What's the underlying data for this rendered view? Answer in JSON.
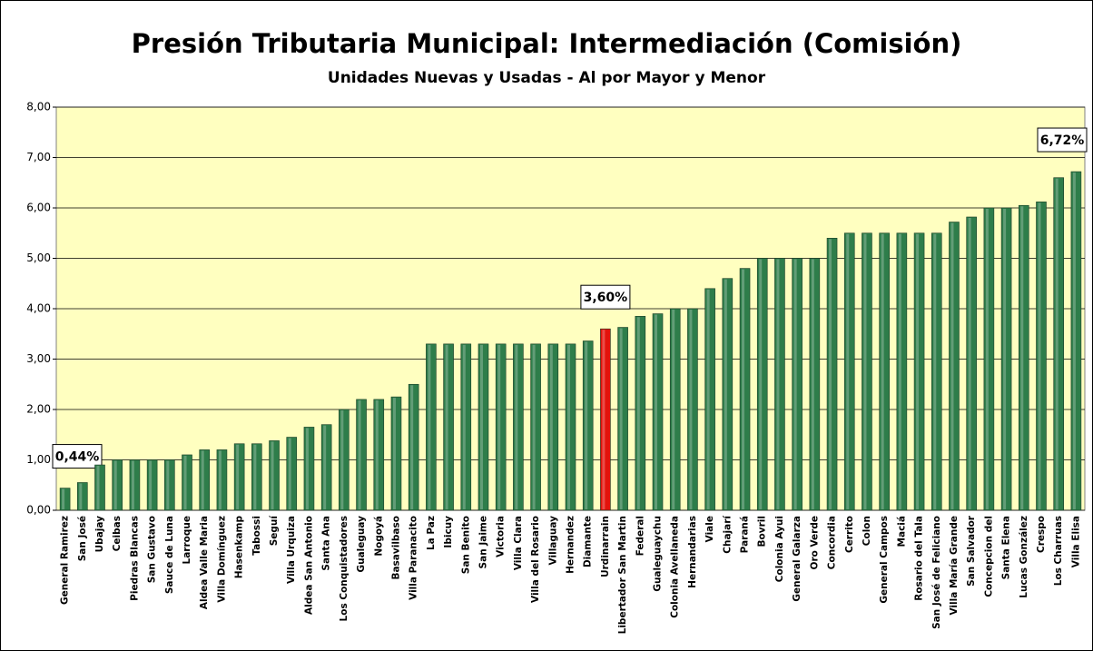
{
  "chart_data": {
    "type": "bar",
    "title": "Presión Tributaria Municipal: Intermediación (Comisión)",
    "subtitle": "Unidades Nuevas y Usadas -  Al por Mayor y Menor",
    "categories": [
      "General Ramirez",
      "San José",
      "Ubajay",
      "Ceibas",
      "Piedras Blancas",
      "San Gustavo",
      "Sauce de Luna",
      "Larroque",
      "Aldea Valle Maria",
      "Villa Domínguez",
      "Hasenkamp",
      "Tabossi",
      "Seguí",
      "Villa Urquiza",
      "Aldea San Antonio",
      "Santa Ana",
      "Los Conquistadores",
      "Gualeguay",
      "Nogoyá",
      "Basavilbaso",
      "Villa Paranacito",
      "La Paz",
      "Ibicuy",
      "San Benito",
      "San Jaime",
      "Victoria",
      "Villa Clara",
      "Villa del Rosario",
      "Villaguay",
      "Hernandez",
      "Diamante",
      "Urdinarrain",
      "Libertador San Martin",
      "Federal",
      "Gualeguaychu",
      "Colonia Avellaneda",
      "Hernandarias",
      "Viale",
      "Chajarí",
      "Paraná",
      "Bovril",
      "Colonia Ayui",
      "General Galarza",
      "Oro Verde",
      "Concordia",
      "Cerrito",
      "Colon",
      "General Campos",
      "Maciá",
      "Rosario del Tala",
      "San José de Feliciano",
      "Villa María Grande",
      "San Salvador",
      "Concepcion del",
      "Santa Elena",
      "Lucas González",
      "Crespo",
      "Los Charruas",
      "Villa Elisa"
    ],
    "values": [
      0.44,
      0.55,
      0.9,
      1.0,
      1.0,
      1.0,
      1.0,
      1.1,
      1.2,
      1.2,
      1.32,
      1.32,
      1.38,
      1.45,
      1.65,
      1.7,
      2.0,
      2.2,
      2.2,
      2.25,
      2.5,
      3.3,
      3.3,
      3.3,
      3.3,
      3.3,
      3.3,
      3.3,
      3.3,
      3.3,
      3.36,
      3.6,
      3.63,
      3.85,
      3.9,
      4.0,
      4.0,
      4.4,
      4.6,
      4.8,
      5.0,
      5.0,
      5.0,
      5.0,
      5.4,
      5.5,
      5.5,
      5.5,
      5.5,
      5.5,
      5.5,
      5.72,
      5.82,
      6.0,
      6.0,
      6.05,
      6.12,
      6.6,
      6.72
    ],
    "value_labels": [
      "0,44%",
      null,
      null,
      null,
      null,
      null,
      null,
      null,
      null,
      null,
      null,
      null,
      null,
      null,
      null,
      null,
      null,
      null,
      null,
      null,
      null,
      null,
      null,
      null,
      null,
      null,
      null,
      null,
      null,
      null,
      null,
      "3,60%",
      null,
      null,
      null,
      null,
      null,
      null,
      null,
      null,
      null,
      null,
      null,
      null,
      null,
      null,
      null,
      null,
      null,
      null,
      null,
      null,
      null,
      null,
      null,
      null,
      null,
      null,
      "6,72%"
    ],
    "colors": [
      "#2e7d4a",
      "#2e7d4a",
      "#2e7d4a",
      "#2e7d4a",
      "#2e7d4a",
      "#2e7d4a",
      "#2e7d4a",
      "#2e7d4a",
      "#2e7d4a",
      "#2e7d4a",
      "#2e7d4a",
      "#2e7d4a",
      "#2e7d4a",
      "#2e7d4a",
      "#2e7d4a",
      "#2e7d4a",
      "#2e7d4a",
      "#2e7d4a",
      "#2e7d4a",
      "#2e7d4a",
      "#2e7d4a",
      "#2e7d4a",
      "#2e7d4a",
      "#2e7d4a",
      "#2e7d4a",
      "#2e7d4a",
      "#2e7d4a",
      "#2e7d4a",
      "#2e7d4a",
      "#2e7d4a",
      "#2e7d4a",
      "#e3120b",
      "#2e7d4a",
      "#2e7d4a",
      "#2e7d4a",
      "#2e7d4a",
      "#2e7d4a",
      "#2e7d4a",
      "#2e7d4a",
      "#2e7d4a",
      "#2e7d4a",
      "#2e7d4a",
      "#2e7d4a",
      "#2e7d4a",
      "#2e7d4a",
      "#2e7d4a",
      "#2e7d4a",
      "#2e7d4a",
      "#2e7d4a",
      "#2e7d4a",
      "#2e7d4a",
      "#2e7d4a",
      "#2e7d4a",
      "#2e7d4a",
      "#2e7d4a",
      "#2e7d4a",
      "#2e7d4a",
      "#2e7d4a",
      "#2e7d4a"
    ],
    "ylim": [
      0,
      8
    ],
    "yticks": [
      {
        "value": 0,
        "label": "0,00"
      },
      {
        "value": 1,
        "label": "1,00"
      },
      {
        "value": 2,
        "label": "2,00"
      },
      {
        "value": 3,
        "label": "3,00"
      },
      {
        "value": 4,
        "label": "4,00"
      },
      {
        "value": 5,
        "label": "5,00"
      },
      {
        "value": 6,
        "label": "6,00"
      },
      {
        "value": 7,
        "label": "7,00"
      },
      {
        "value": 8,
        "label": "8,00"
      }
    ],
    "grid": true
  }
}
